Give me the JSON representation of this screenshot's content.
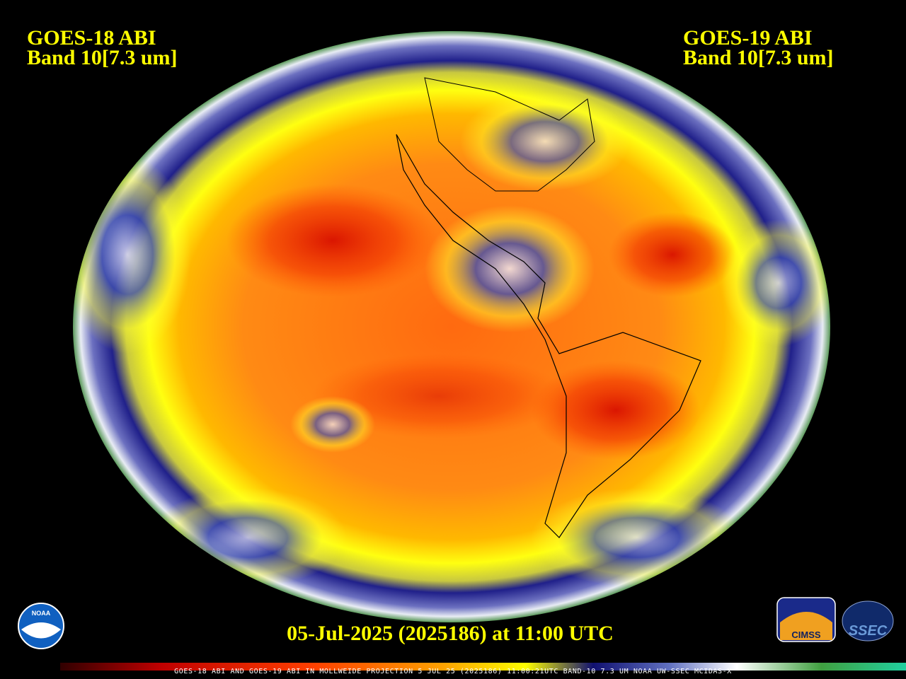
{
  "left_header": {
    "line1": "GOES-18 ABI",
    "line2": "Band 10[7.3 um]"
  },
  "right_header": {
    "line1": "GOES-19 ABI",
    "line2": "Band 10[7.3 um]"
  },
  "timestamp": "05-Jul-2025 (2025186) at 11:00 UTC",
  "footer_caption": "GOES-18 ABI AND GOES-19 ABI IN MOLLWEIDE PROJECTION 5 JUL 25 (2025186) 11:00:21UTC BAND-10 7.3 UM NOAA UW-SSEC MCIDAS-X",
  "logos": {
    "noaa": "NOAA",
    "cimss": "CIMSS",
    "ssec": "SSEC"
  }
}
